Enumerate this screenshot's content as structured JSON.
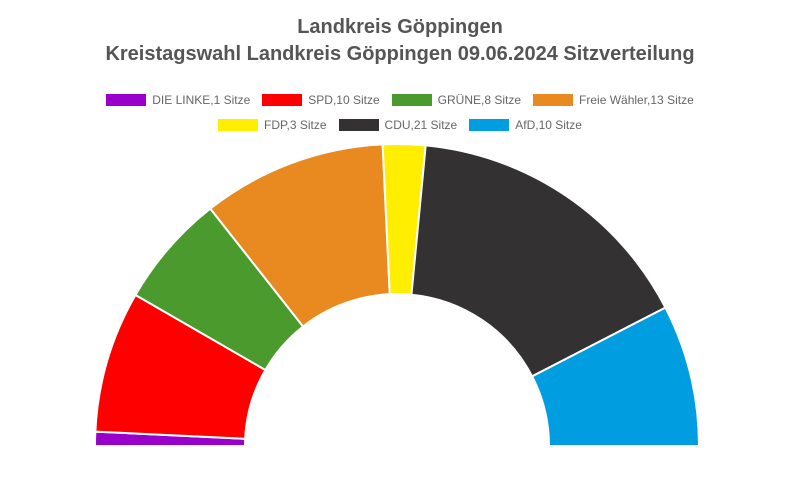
{
  "chart_data": {
    "type": "pie",
    "title": "Landkreis Göppingen",
    "subtitle": "Kreistagswahl Landkreis Göppingen 09.06.2024 Sitzverteilung",
    "series": [
      {
        "name": "DIE LINKE",
        "legend": "DIE LINKE,1 Sitze",
        "value": 1,
        "color": "#9900CC"
      },
      {
        "name": "SPD",
        "legend": "SPD,10 Sitze",
        "value": 10,
        "color": "#FF0000"
      },
      {
        "name": "GRÜNE",
        "legend": "GRÜNE,8 Sitze",
        "value": 8,
        "color": "#4A9A2E"
      },
      {
        "name": "Freie Wähler",
        "legend": "Freie Wähler,13 Sitze",
        "value": 13,
        "color": "#E98A20"
      },
      {
        "name": "FDP",
        "legend": "FDP,3 Sitze",
        "value": 3,
        "color": "#FFEE00"
      },
      {
        "name": "CDU",
        "legend": "CDU,21 Sitze",
        "value": 21,
        "color": "#333132"
      },
      {
        "name": "AfD",
        "legend": "AfD,10 Sitze",
        "value": 10,
        "color": "#009EE0"
      }
    ],
    "legend_position": "top",
    "shape": "semicircle"
  }
}
